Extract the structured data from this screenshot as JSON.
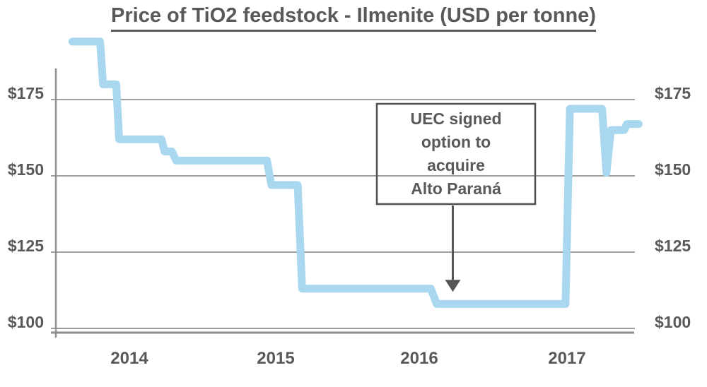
{
  "title": "Price of TiO2 feedstock - Ilmenite (USD per tonne)",
  "axis": {
    "y_ticks_left": [
      "$175",
      "$150",
      "$125",
      "$100"
    ],
    "y_ticks_right": [
      "$175",
      "$150",
      "$125",
      "$100"
    ],
    "x_ticks": [
      "2014",
      "2015",
      "2016",
      "2017"
    ]
  },
  "annotation": {
    "full_text": "UEC signed option to acquire Alto Paraná",
    "lines": [
      "UEC signed",
      "option to",
      "acquire",
      "Alto Paraná"
    ]
  },
  "colors": {
    "line": "#a8d7ef",
    "grid": "#9e9e9e",
    "axis_line": "#8f8f8f",
    "text": "#595959",
    "annotation_border": "#4f4f4f",
    "arrow": "#565656",
    "background": "#ffffff"
  },
  "chart_data": {
    "type": "line",
    "title": "Price of TiO2 feedstock - Ilmenite (USD per tonne)",
    "ylabel": "USD per tonne",
    "xlabel": "",
    "x_tick_labels": [
      "2014",
      "2015",
      "2016",
      "2017"
    ],
    "y_tick_labels": [
      "$175",
      "$150",
      "$125",
      "$100"
    ],
    "y_gridlines": [
      175,
      150,
      125,
      100
    ],
    "xlim": [
      2013.5,
      2017.6
    ],
    "ylim_visible": [
      95,
      200
    ],
    "grid": "horizontal",
    "legend": "none",
    "series": [
      {
        "name": "Ilmenite price (USD per tonne)",
        "points": [
          [
            2013.61,
            194
          ],
          [
            2013.8,
            194
          ],
          [
            2013.82,
            180
          ],
          [
            2013.91,
            180
          ],
          [
            2013.93,
            162
          ],
          [
            2014.22,
            162
          ],
          [
            2014.24,
            158
          ],
          [
            2014.29,
            158
          ],
          [
            2014.32,
            155
          ],
          [
            2014.94,
            155
          ],
          [
            2014.97,
            147
          ],
          [
            2015.15,
            147
          ],
          [
            2015.18,
            113
          ],
          [
            2016.06,
            113
          ],
          [
            2016.1,
            108
          ],
          [
            2016.98,
            108
          ],
          [
            2017.01,
            172
          ],
          [
            2017.23,
            172
          ],
          [
            2017.26,
            151
          ],
          [
            2017.29,
            165
          ],
          [
            2017.38,
            165
          ],
          [
            2017.4,
            167
          ],
          [
            2017.48,
            167
          ]
        ]
      }
    ],
    "annotation": {
      "text": "UEC signed option to acquire Alto Paraná",
      "arrow_tip": [
        2016.21,
        112
      ]
    }
  }
}
